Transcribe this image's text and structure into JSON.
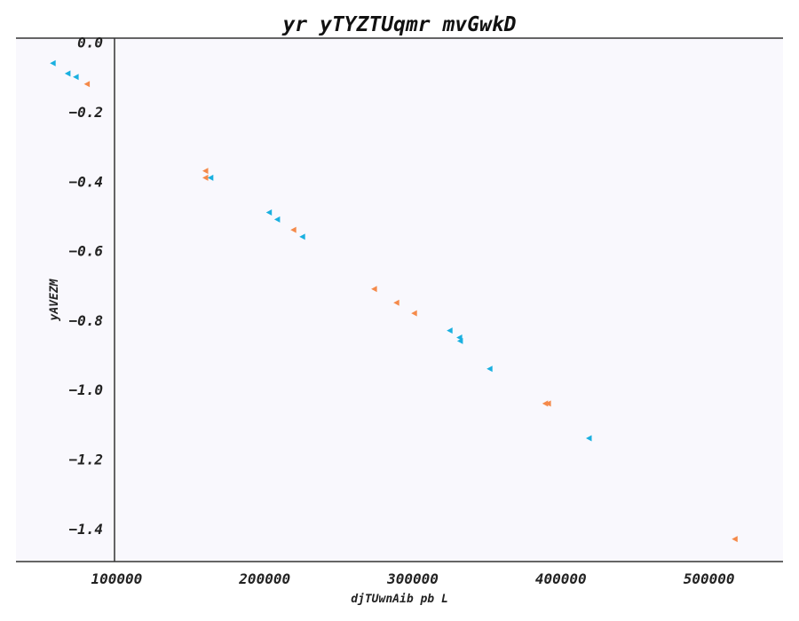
{
  "chart_data": {
    "type": "scatter",
    "title": "yr yTYZTUqmr mvGwkD",
    "xlabel": "djTUwnAib pb L",
    "ylabel": "yAVEZM",
    "xlim": [
      32000,
      550000
    ],
    "ylim": [
      -1.495,
      0.012
    ],
    "x_ticks": [
      100000,
      200000,
      300000,
      400000,
      500000
    ],
    "x_tick_labels": [
      "100000",
      "200000",
      "300000",
      "400000",
      "500000"
    ],
    "y_ticks": [
      0.0,
      -0.2,
      -0.4,
      -0.6,
      -0.8,
      -1.0,
      -1.2,
      -1.4
    ],
    "y_tick_labels": [
      "0.0",
      "−0.2",
      "−0.4",
      "−0.6",
      "−0.8",
      "−1.0",
      "−1.2",
      "−1.4"
    ],
    "grid": false,
    "marker": "triangle-left",
    "series": [
      {
        "color": "#1ab0e0",
        "points": [
          [
            57000,
            -0.06
          ],
          [
            67000,
            -0.09
          ],
          [
            72500,
            -0.1
          ],
          [
            163500,
            -0.39
          ],
          [
            203000,
            -0.49
          ],
          [
            208500,
            -0.51
          ],
          [
            225500,
            -0.56
          ],
          [
            325000,
            -0.83
          ],
          [
            331500,
            -0.85
          ],
          [
            332000,
            -0.86
          ],
          [
            352000,
            -0.94
          ],
          [
            419000,
            -1.14
          ]
        ]
      },
      {
        "color": "#f58a4a",
        "points": [
          [
            80000,
            -0.12
          ],
          [
            160000,
            -0.37
          ],
          [
            160000,
            -0.39
          ],
          [
            219500,
            -0.54
          ],
          [
            274000,
            -0.71
          ],
          [
            289000,
            -0.75
          ],
          [
            301000,
            -0.78
          ],
          [
            389500,
            -1.04
          ],
          [
            391500,
            -1.04
          ],
          [
            517500,
            -1.43
          ]
        ]
      }
    ]
  }
}
